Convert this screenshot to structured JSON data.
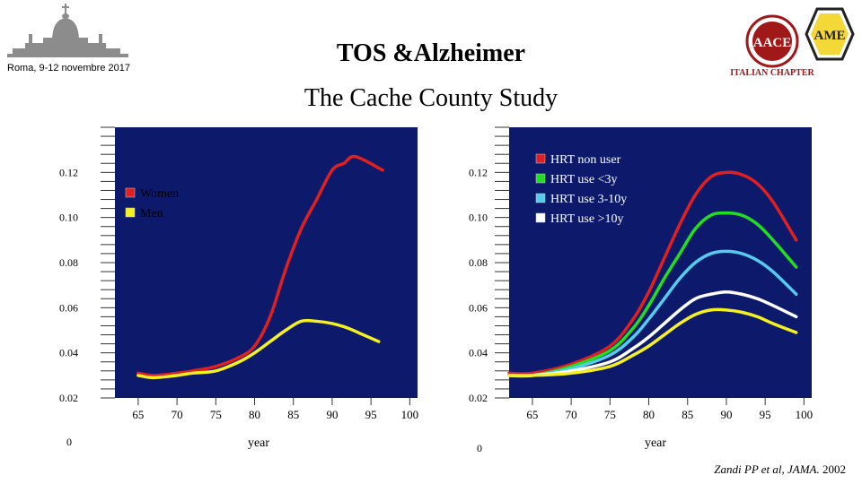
{
  "header": {
    "caption": "Roma, 9-12 novembre 2017",
    "title": "TOS &Alzheimer",
    "subtitle": "The Cache County Study",
    "logo_text": "ITALIAN CHAPTER",
    "logo_letters": "AACE",
    "logo2_letters": "AME"
  },
  "citation": {
    "authors": "Zandi PP et al, JAMA.",
    "year": "2002"
  },
  "colors": {
    "plot_bg": "#0d1a6b",
    "red": "#e02020",
    "yellow": "#f5f020",
    "green": "#22dd22",
    "cyan": "#55ccee",
    "white": "#ffffff",
    "logo_red": "#a01818"
  },
  "chart_data": [
    {
      "type": "line",
      "xlabel": "year",
      "ylabel": "",
      "xlim": [
        62,
        101
      ],
      "ylim": [
        0.02,
        0.14
      ],
      "xticks": [
        "65",
        "70",
        "75",
        "80",
        "85",
        "90",
        "95",
        "100"
      ],
      "yticks": [
        "0.02",
        "0.04",
        "0.06",
        "0.08",
        "0.10",
        "0.12"
      ],
      "y_zero_label": "0",
      "legend": "top-left",
      "series": [
        {
          "name": "Women",
          "color": "#e02020",
          "x": [
            65,
            67,
            70,
            72,
            75,
            78,
            80,
            82,
            84,
            86,
            88,
            90,
            91.5,
            93,
            96.5
          ],
          "y": [
            0.031,
            0.03,
            0.031,
            0.032,
            0.034,
            0.038,
            0.043,
            0.056,
            0.077,
            0.095,
            0.108,
            0.121,
            0.124,
            0.127,
            0.121
          ]
        },
        {
          "name": "Men",
          "color": "#f5f020",
          "x": [
            65,
            67,
            70,
            72,
            75,
            78,
            80,
            82,
            84,
            86,
            88,
            90,
            92,
            94,
            96
          ],
          "y": [
            0.03,
            0.029,
            0.03,
            0.031,
            0.032,
            0.036,
            0.04,
            0.045,
            0.05,
            0.054,
            0.054,
            0.053,
            0.051,
            0.048,
            0.045
          ]
        }
      ]
    },
    {
      "type": "line",
      "xlabel": "year",
      "ylabel": "",
      "xlim": [
        62,
        101
      ],
      "ylim": [
        0.02,
        0.14
      ],
      "xticks": [
        "65",
        "70",
        "75",
        "80",
        "85",
        "90",
        "95",
        "100"
      ],
      "yticks": [
        "0.02",
        "0.04",
        "0.06",
        "0.08",
        "0.10",
        "0.12"
      ],
      "y_zero_label": "0",
      "legend": "top-right",
      "series": [
        {
          "name": "HRT non user",
          "color": "#e02020",
          "x": [
            62,
            65,
            70,
            75,
            78,
            80,
            82,
            84,
            86,
            88,
            90,
            92,
            94,
            96,
            99
          ],
          "y": [
            0.031,
            0.031,
            0.035,
            0.043,
            0.055,
            0.067,
            0.082,
            0.097,
            0.11,
            0.118,
            0.12,
            0.119,
            0.115,
            0.107,
            0.09
          ]
        },
        {
          "name": "HRT use <3y",
          "color": "#22dd22",
          "x": [
            62,
            65,
            70,
            75,
            78,
            80,
            82,
            84,
            86,
            88,
            90,
            92,
            94,
            96,
            99
          ],
          "y": [
            0.03,
            0.03,
            0.034,
            0.041,
            0.051,
            0.061,
            0.073,
            0.084,
            0.095,
            0.101,
            0.102,
            0.101,
            0.097,
            0.09,
            0.078
          ]
        },
        {
          "name": "HRT use 3-10y",
          "color": "#55ccee",
          "x": [
            62,
            65,
            70,
            75,
            78,
            80,
            82,
            84,
            86,
            88,
            90,
            92,
            94,
            96,
            99
          ],
          "y": [
            0.03,
            0.03,
            0.033,
            0.039,
            0.047,
            0.055,
            0.064,
            0.073,
            0.08,
            0.084,
            0.085,
            0.084,
            0.081,
            0.076,
            0.066
          ]
        },
        {
          "name": "HRT use >10y",
          "color": "#ffffff",
          "x": [
            62,
            65,
            70,
            75,
            78,
            80,
            82,
            84,
            86,
            88,
            90,
            92,
            94,
            96,
            99
          ],
          "y": [
            0.03,
            0.03,
            0.032,
            0.036,
            0.042,
            0.047,
            0.053,
            0.059,
            0.064,
            0.066,
            0.067,
            0.066,
            0.064,
            0.061,
            0.056
          ]
        },
        {
          "name": "",
          "color": "#f5f020",
          "x": [
            62,
            65,
            70,
            75,
            78,
            80,
            82,
            84,
            86,
            88,
            90,
            92,
            94,
            96,
            99
          ],
          "y": [
            0.03,
            0.03,
            0.031,
            0.034,
            0.039,
            0.043,
            0.048,
            0.053,
            0.057,
            0.059,
            0.059,
            0.058,
            0.056,
            0.053,
            0.049
          ]
        }
      ]
    }
  ]
}
